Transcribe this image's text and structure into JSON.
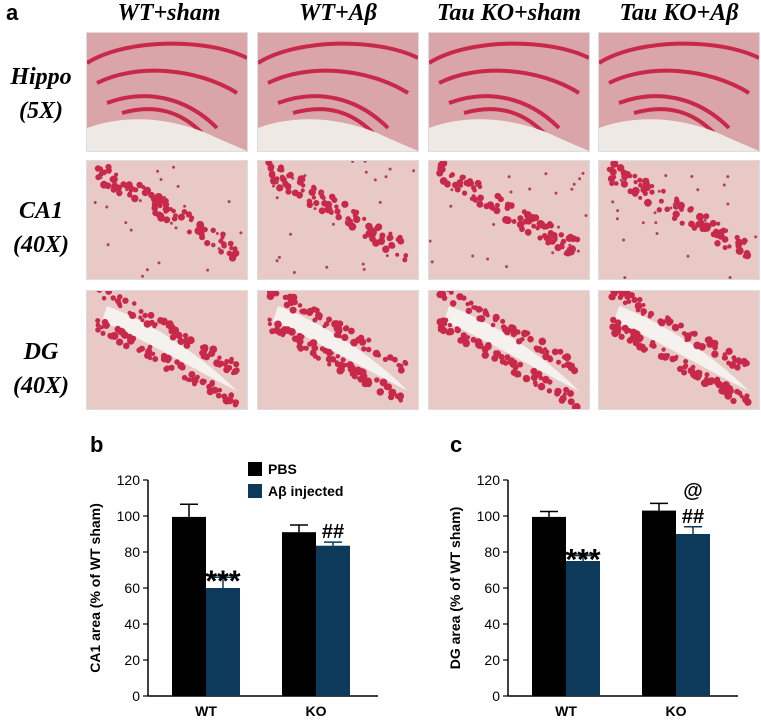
{
  "figure": {
    "panel_a": "a",
    "panel_b": "b",
    "panel_c": "c",
    "columns": [
      "WT+sham",
      "WT+Aβ",
      "Tau KO+sham",
      "Tau KO+Aβ"
    ],
    "rows": [
      {
        "name": "Hippo",
        "mag": "(5X)"
      },
      {
        "name": "CA1",
        "mag": "(40X)"
      },
      {
        "name": "DG",
        "mag": "(40X)"
      }
    ],
    "colors": {
      "pbs": "#000000",
      "abeta": "#0d3a5a",
      "stain": "#c8284a",
      "tissue": "#e8c9c6"
    }
  },
  "chart_data": [
    {
      "type": "bar",
      "panel": "b",
      "categories": [
        "WT",
        "KO"
      ],
      "series": [
        {
          "name": "PBS",
          "values": [
            99.5,
            91
          ],
          "errors": [
            7,
            4
          ],
          "color": "#000000"
        },
        {
          "name": "Aβ injected",
          "values": [
            60,
            83.5
          ],
          "errors": [
            6,
            2
          ],
          "color": "#0d3a5a"
        }
      ],
      "annotations": [
        {
          "category": 0,
          "series": 1,
          "text": "***"
        },
        {
          "category": 1,
          "series": 1,
          "text": "##"
        }
      ],
      "ylabel": "CA1 area (% of WT sham)",
      "ylim": [
        0,
        120
      ],
      "yticks": [
        0,
        20,
        40,
        60,
        80,
        100,
        120
      ],
      "legend": "top"
    },
    {
      "type": "bar",
      "panel": "c",
      "categories": [
        "WT",
        "KO"
      ],
      "series": [
        {
          "values": [
            99.5,
            103
          ],
          "errors": [
            3,
            4
          ],
          "color": "#000000"
        },
        {
          "values": [
            75,
            90
          ],
          "errors": [
            3,
            4
          ],
          "color": "#0d3a5a"
        }
      ],
      "annotations": [
        {
          "category": 0,
          "series": 1,
          "text": "***"
        },
        {
          "category": 1,
          "series": 1,
          "text": "##"
        },
        {
          "category": 1,
          "series": 1,
          "text": "@",
          "offset": 2
        }
      ],
      "ylabel": "DG area (% of WT sham)",
      "ylim": [
        0,
        120
      ],
      "yticks": [
        0,
        20,
        40,
        60,
        80,
        100,
        120
      ]
    }
  ]
}
